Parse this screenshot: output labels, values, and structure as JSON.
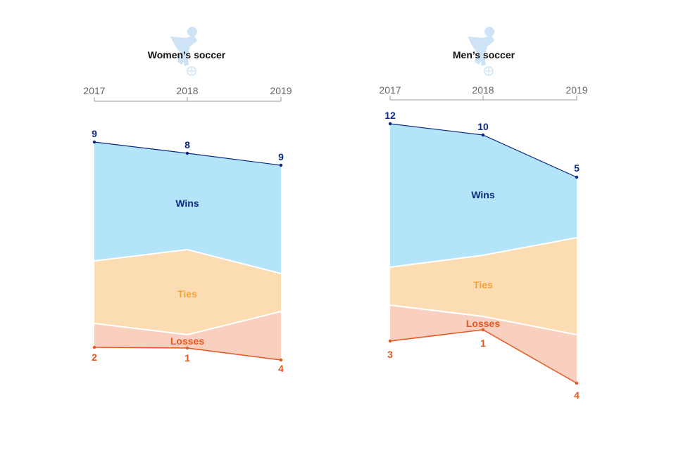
{
  "colors": {
    "wins_fill": "#b4e4fa",
    "ties_fill": "#fcdcb2",
    "losses_fill": "#f9d0bf",
    "wins_text": "#0b2a7f",
    "ties_text": "#f2a33a",
    "losses_text": "#e6561f",
    "axis": "#999999",
    "icon": "#cfe3f6"
  },
  "chart_data": [
    {
      "type": "area",
      "title": "Women’s soccer",
      "icon": "soccer-player-icon",
      "x": [
        "2017",
        "2018",
        "2019"
      ],
      "series": [
        {
          "name": "Wins",
          "values": [
            9,
            8,
            9
          ]
        },
        {
          "name": "Ties",
          "values": [
            null,
            null,
            null
          ]
        },
        {
          "name": "Losses",
          "values": [
            2,
            1,
            4
          ]
        }
      ],
      "wins_labels": [
        "9",
        "8",
        "9"
      ],
      "losses_labels": [
        "2",
        "1",
        "4"
      ],
      "band_labels": {
        "wins": "Wins",
        "ties": "Ties",
        "losses": "Losses"
      }
    },
    {
      "type": "area",
      "title": "Men’s soccer",
      "icon": "soccer-player-icon",
      "x": [
        "2017",
        "2018",
        "2019"
      ],
      "series": [
        {
          "name": "Wins",
          "values": [
            12,
            10,
            5
          ]
        },
        {
          "name": "Ties",
          "values": [
            null,
            null,
            null
          ]
        },
        {
          "name": "Losses",
          "values": [
            3,
            1,
            4
          ]
        }
      ],
      "wins_labels": [
        "12",
        "10",
        "5"
      ],
      "losses_labels": [
        "3",
        "1",
        "4"
      ],
      "band_labels": {
        "wins": "Wins",
        "ties": "Ties",
        "losses": "Losses"
      }
    }
  ]
}
